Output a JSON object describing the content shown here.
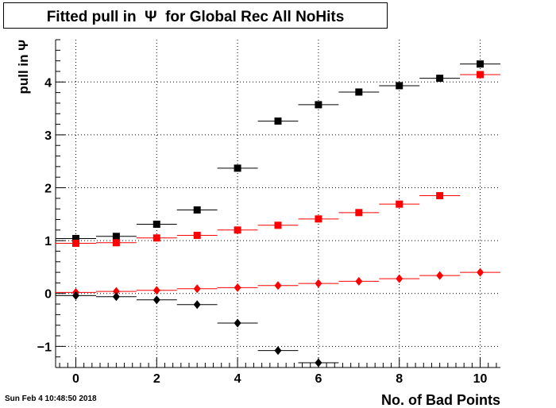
{
  "title": "Fitted pull in  Ψ  for Global Rec All NoHits",
  "timestamp": "Sun Feb  4 10:48:50 2018",
  "chart_data": {
    "type": "scatter",
    "title": "Fitted pull in  Ψ  for Global Rec All NoHits",
    "xlabel": "No. of Bad Points",
    "ylabel": "pull in  Ψ",
    "xlim": [
      -0.5,
      10.5
    ],
    "ylim": [
      -1.4,
      4.8
    ],
    "xticks": [
      "0",
      "2",
      "4",
      "6",
      "8",
      "10"
    ],
    "yticks": [
      "−1",
      "0",
      "1",
      "2",
      "3",
      "4"
    ],
    "grid": true,
    "series": [
      {
        "marker": "square",
        "color": "#000000",
        "x": [
          0,
          1,
          2,
          3,
          4,
          5,
          6,
          7,
          8,
          9,
          10
        ],
        "y": [
          1.04,
          1.08,
          1.31,
          1.58,
          2.37,
          3.26,
          3.57,
          3.81,
          3.93,
          4.07,
          4.34
        ]
      },
      {
        "marker": "square",
        "color": "#ff0000",
        "x": [
          0,
          1,
          2,
          3,
          4,
          5,
          6,
          7,
          8,
          9,
          10
        ],
        "y": [
          0.95,
          0.96,
          1.05,
          1.1,
          1.2,
          1.29,
          1.41,
          1.53,
          1.69,
          1.85,
          4.14
        ]
      },
      {
        "marker": "diamond",
        "color": "#ff0000",
        "x": [
          0,
          1,
          2,
          3,
          4,
          5,
          6,
          7,
          8,
          9,
          10
        ],
        "y": [
          0.02,
          0.04,
          0.06,
          0.09,
          0.11,
          0.15,
          0.19,
          0.23,
          0.28,
          0.34,
          0.4
        ]
      },
      {
        "marker": "diamond",
        "color": "#000000",
        "x": [
          0,
          1,
          2,
          3,
          4,
          5,
          6,
          7,
          8,
          9
        ],
        "y": [
          -0.04,
          -0.06,
          -0.12,
          -0.21,
          -0.56,
          -1.08,
          -1.31,
          null,
          null,
          null
        ]
      }
    ]
  }
}
